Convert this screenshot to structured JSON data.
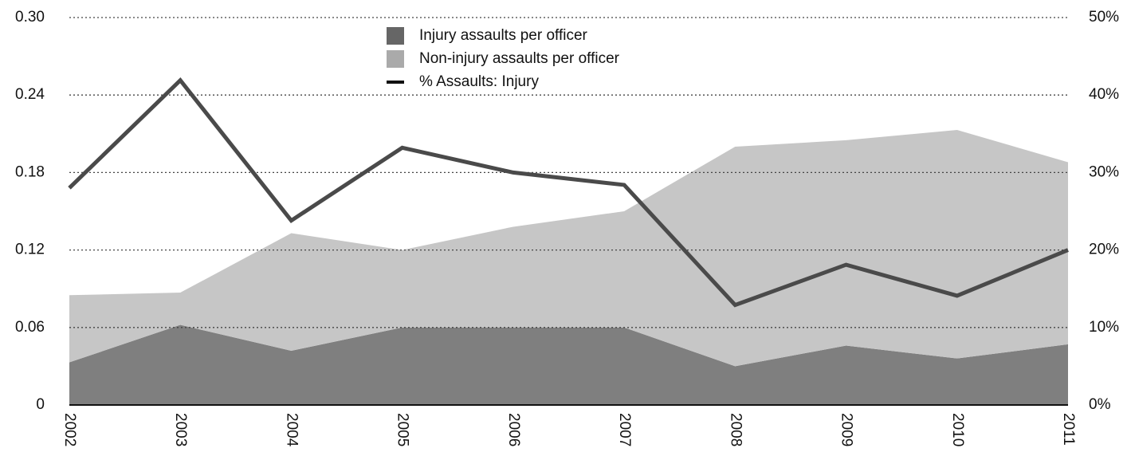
{
  "chart_data": {
    "type": "stacked-area-line",
    "categories": [
      "2002",
      "2003",
      "2004",
      "2005",
      "2006",
      "2007",
      "2008",
      "2009",
      "2010",
      "2011"
    ],
    "series": [
      {
        "name": "Injury assaults per officer",
        "color": "#7f7f7f",
        "legend_color": "#666666",
        "values": [
          0.033,
          0.062,
          0.042,
          0.06,
          0.06,
          0.06,
          0.03,
          0.046,
          0.036,
          0.047
        ]
      },
      {
        "name": "Non-injury assaults per officer",
        "color": "#c6c6c6",
        "legend_color": "#aaaaaa",
        "values": [
          0.052,
          0.025,
          0.091,
          0.06,
          0.078,
          0.09,
          0.17,
          0.159,
          0.177,
          0.141
        ]
      },
      {
        "name": "% Assaults: Injury",
        "color": "#4a4a4a",
        "legend_color": "#111111",
        "axis": "y2",
        "values": [
          28.0,
          41.9,
          23.8,
          33.2,
          30.0,
          28.4,
          12.9,
          18.1,
          14.1,
          20.0
        ]
      }
    ],
    "ylim": [
      0,
      0.3
    ],
    "yticks": [
      0,
      0.06,
      0.12,
      0.18,
      0.24,
      {
        "value": 0.3,
        "label": "0.30"
      }
    ],
    "y2lim": [
      0,
      50
    ],
    "y2ticks": [
      {
        "value": 0,
        "label": "0%"
      },
      {
        "value": 10,
        "label": "10%"
      },
      {
        "value": 20,
        "label": "20%"
      },
      {
        "value": 30,
        "label": "30%"
      },
      {
        "value": 40,
        "label": "40%"
      },
      {
        "value": 50,
        "label": "50%"
      }
    ],
    "grid": true
  }
}
